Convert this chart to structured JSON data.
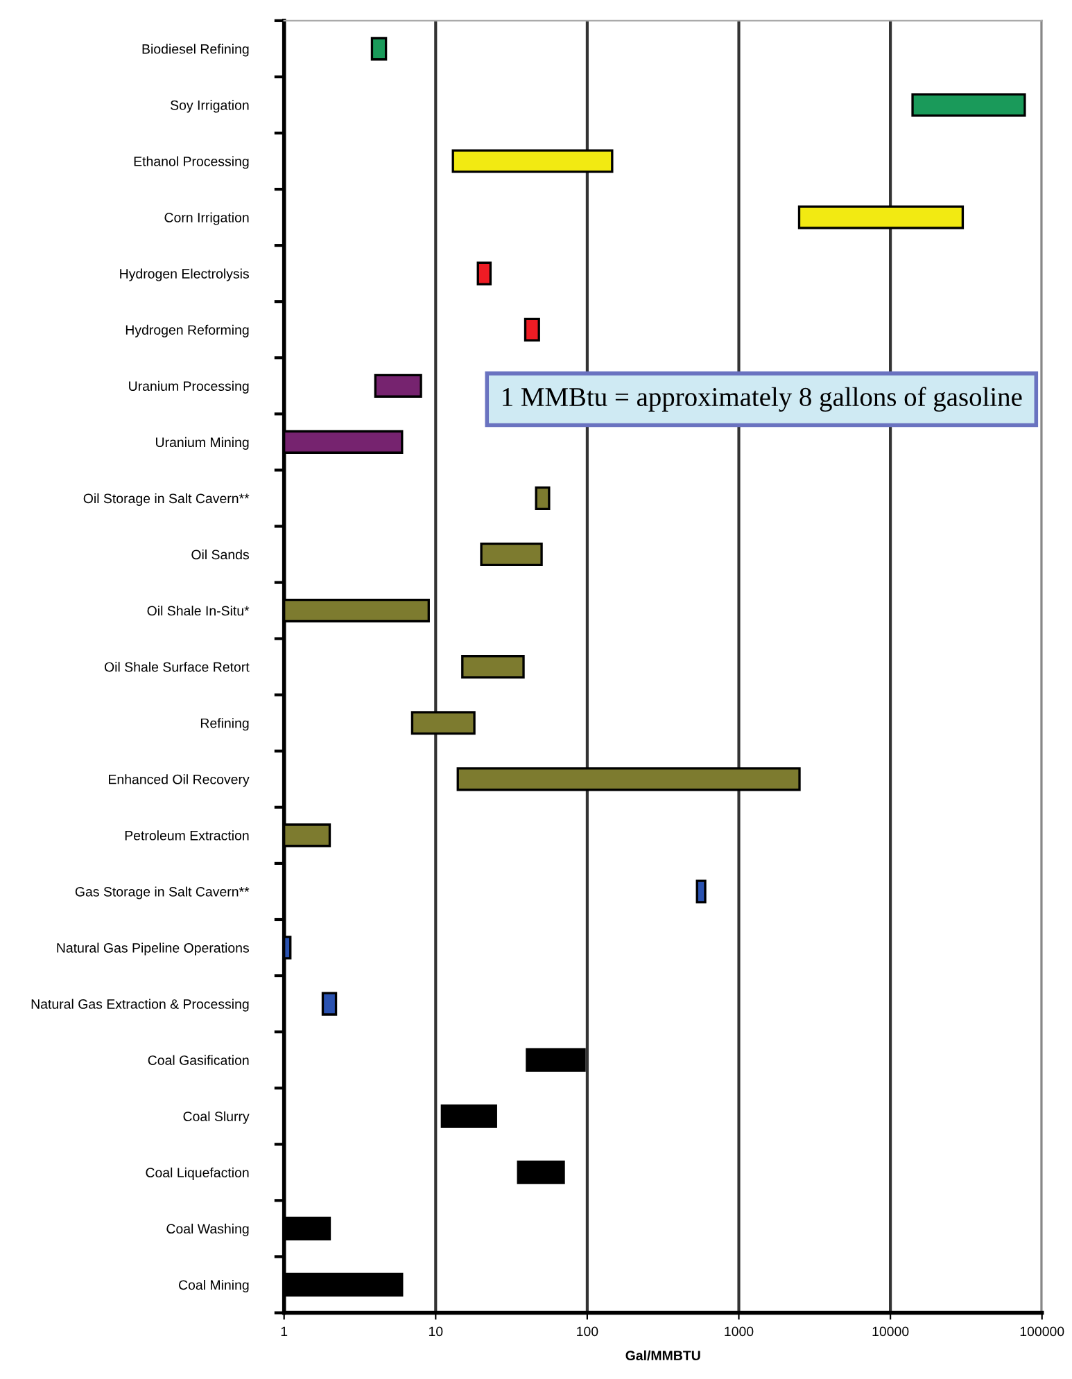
{
  "chart_data": {
    "type": "bar",
    "orientation": "horizontal",
    "xlabel": "Gal/MMBTU",
    "categories": [
      "Biodiesel Refining",
      "Soy Irrigation",
      "Ethanol Processing",
      "Corn Irrigation",
      "Hydrogen Electrolysis",
      "Hydrogen Reforming",
      "Uranium Processing",
      "Uranium Mining",
      "Oil Storage in Salt Cavern**",
      "Oil Sands",
      "Oil Shale In-Situ*",
      "Oil Shale Surface Retort",
      "Refining",
      "Enhanced Oil Recovery",
      "Petroleum Extraction",
      "Gas Storage in Salt Cavern**",
      "Natural Gas Pipeline Operations",
      "Natural Gas Extraction & Processing",
      "Coal Gasification",
      "Coal Slurry",
      "Coal Liquefaction",
      "Coal Washing",
      "Coal Mining"
    ],
    "base": [
      3.8,
      14000,
      13,
      2500,
      19,
      39,
      4,
      1,
      46,
      20,
      1,
      15,
      7,
      14,
      1,
      530,
      1,
      1.8,
      40,
      11,
      35,
      1,
      1
    ],
    "values": [
      0.9,
      63000,
      133,
      27500,
      4,
      9,
      4,
      5,
      10,
      30,
      8,
      23,
      11,
      2500,
      1,
      70,
      0.1,
      0.4,
      56,
      14,
      35,
      1,
      5
    ],
    "colors": [
      "#1a9a5a",
      "#1a9a5a",
      "#f2ea12",
      "#f2ea12",
      "#ee1c24",
      "#ee1c24",
      "#76236f",
      "#76236f",
      "#7d7b2f",
      "#7d7b2f",
      "#7d7b2f",
      "#7d7b2f",
      "#7d7b2f",
      "#7d7b2f",
      "#7d7b2f",
      "#2a52b0",
      "#2a52b0",
      "#2a52b0",
      "#000000",
      "#000000",
      "#000000",
      "#000000",
      "#000000"
    ],
    "log": "x",
    "xlim": [
      1,
      100000
    ],
    "xticks": [
      1,
      10,
      100,
      1000,
      10000,
      100000
    ],
    "grid": "x",
    "legend": false,
    "annotations": [
      "1 MMBtu = approximately 8 gallons of gasoline"
    ]
  }
}
